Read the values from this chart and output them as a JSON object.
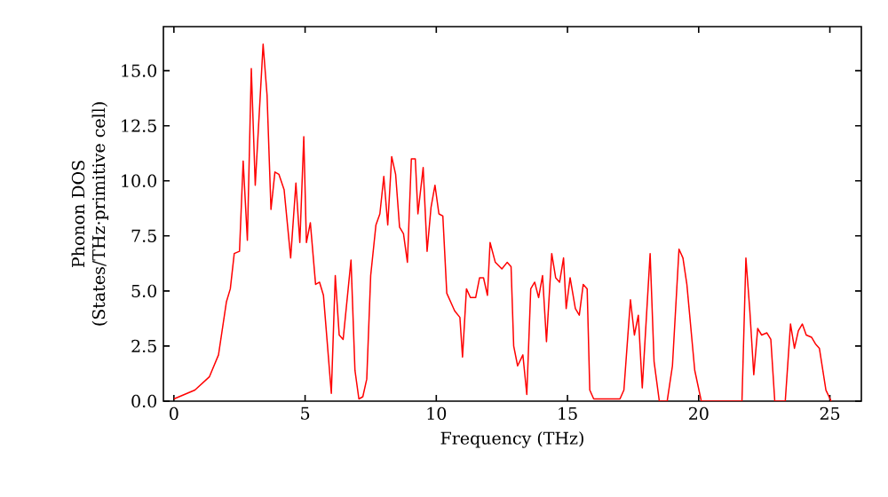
{
  "chart_data": {
    "type": "line",
    "xlabel": "Frequency (THz)",
    "ylabel": "Phonon DOS\n(States/THz·primitive cell)",
    "x": [
      0,
      0.8,
      1.35,
      1.7,
      2.0,
      2.15,
      2.3,
      2.5,
      2.64,
      2.8,
      2.95,
      3.1,
      3.4,
      3.55,
      3.7,
      3.85,
      4.0,
      4.2,
      4.45,
      4.65,
      4.8,
      4.95,
      5.05,
      5.2,
      5.4,
      5.55,
      5.7,
      6.0,
      6.15,
      6.3,
      6.45,
      6.75,
      6.9,
      7.05,
      7.2,
      7.35,
      7.5,
      7.7,
      7.85,
      8.0,
      8.15,
      8.3,
      8.45,
      8.6,
      8.75,
      8.9,
      9.05,
      9.2,
      9.3,
      9.5,
      9.65,
      9.8,
      9.95,
      10.1,
      10.25,
      10.4,
      10.7,
      10.9,
      11.0,
      11.15,
      11.3,
      11.5,
      11.65,
      11.8,
      11.95,
      12.05,
      12.25,
      12.5,
      12.7,
      12.85,
      12.95,
      13.1,
      13.3,
      13.45,
      13.6,
      13.75,
      13.9,
      14.05,
      14.2,
      14.4,
      14.55,
      14.7,
      14.85,
      14.95,
      15.1,
      15.3,
      15.45,
      15.6,
      15.75,
      15.85,
      16.0,
      17.0,
      17.15,
      17.4,
      17.55,
      17.7,
      17.85,
      18.15,
      18.3,
      18.5,
      18.8,
      19.0,
      19.25,
      19.4,
      19.55,
      19.85,
      20.1,
      21.65,
      21.8,
      21.95,
      22.1,
      22.25,
      22.4,
      22.6,
      22.75,
      22.9,
      23.3,
      23.5,
      23.65,
      23.8,
      23.95,
      24.1,
      24.3,
      24.45,
      24.6,
      24.85,
      25.05
    ],
    "series": [
      {
        "color": "#ff0000",
        "values": [
          0.1,
          0.5,
          1.1,
          2.1,
          4.5,
          5.1,
          6.7,
          6.8,
          10.9,
          7.3,
          15.1,
          9.8,
          16.2,
          13.9,
          8.7,
          10.4,
          10.3,
          9.6,
          6.5,
          9.9,
          7.2,
          12.0,
          7.2,
          8.1,
          5.3,
          5.4,
          4.8,
          0.35,
          5.7,
          3.0,
          2.8,
          6.4,
          1.4,
          0.1,
          0.2,
          1.0,
          5.7,
          8.0,
          8.5,
          10.2,
          8.0,
          11.1,
          10.3,
          7.9,
          7.6,
          6.3,
          11.0,
          11.0,
          8.5,
          10.6,
          6.8,
          8.8,
          9.8,
          8.5,
          8.4,
          4.9,
          4.1,
          3.8,
          2.0,
          5.1,
          4.7,
          4.7,
          5.6,
          5.6,
          4.8,
          7.2,
          6.3,
          6.0,
          6.3,
          6.1,
          2.5,
          1.6,
          2.1,
          0.3,
          5.1,
          5.4,
          4.7,
          5.7,
          2.7,
          6.7,
          5.6,
          5.4,
          6.5,
          4.2,
          5.6,
          4.2,
          3.9,
          5.3,
          5.1,
          0.5,
          0.1,
          0.1,
          0.5,
          4.6,
          3.0,
          3.9,
          0.6,
          6.7,
          1.8,
          0,
          0,
          1.6,
          6.9,
          6.5,
          5.3,
          1.4,
          0,
          0,
          6.5,
          4.1,
          1.2,
          3.3,
          3.0,
          3.1,
          2.8,
          0,
          0,
          3.5,
          2.4,
          3.2,
          3.5,
          3.0,
          2.9,
          2.6,
          2.4,
          0.5,
          0
        ]
      }
    ],
    "xlim": [
      -0.4,
      26.2
    ],
    "ylim": [
      0,
      17
    ],
    "xticks": [
      0,
      5,
      10,
      15,
      20,
      25
    ],
    "yticks": [
      {
        "value": 0,
        "label": "0.0"
      },
      {
        "value": 2.5,
        "label": "2.5"
      },
      {
        "value": 5,
        "label": "5.0"
      },
      {
        "value": 7.5,
        "label": "7.5"
      },
      {
        "value": 10,
        "label": "10.0"
      },
      {
        "value": 12.5,
        "label": "12.5"
      },
      {
        "value": 15,
        "label": "15.0"
      }
    ],
    "grid": false,
    "marker": "none",
    "line_style": "solid"
  }
}
